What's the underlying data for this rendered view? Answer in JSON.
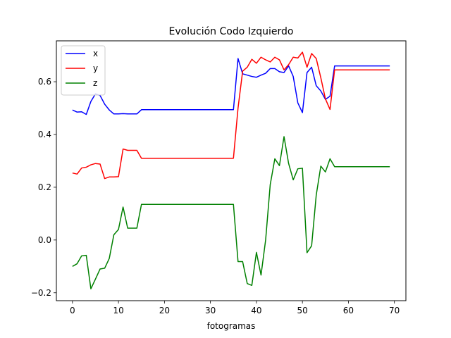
{
  "chart_data": {
    "type": "line",
    "title": "Evolución Codo Izquierdo",
    "xlabel": "fotogramas",
    "ylabel": "",
    "xlim": [
      -3.5,
      72.5
    ],
    "ylim": [
      -0.23,
      0.755
    ],
    "xticks": [
      0,
      10,
      20,
      30,
      40,
      50,
      60,
      70
    ],
    "xtick_labels": [
      "0",
      "10",
      "20",
      "30",
      "40",
      "50",
      "60",
      "70"
    ],
    "yticks": [
      -0.2,
      0.0,
      0.2,
      0.4,
      0.6
    ],
    "ytick_labels": [
      "−0.2",
      "0.0",
      "0.2",
      "0.4",
      "0.6"
    ],
    "grid": false,
    "legend_position": "top-left",
    "x": [
      0,
      1,
      2,
      3,
      4,
      5,
      6,
      7,
      8,
      9,
      10,
      11,
      12,
      13,
      14,
      15,
      16,
      17,
      18,
      19,
      20,
      21,
      22,
      23,
      24,
      25,
      26,
      27,
      28,
      29,
      30,
      31,
      32,
      33,
      34,
      35,
      36,
      37,
      38,
      39,
      40,
      41,
      42,
      43,
      44,
      45,
      46,
      47,
      48,
      49,
      50,
      51,
      52,
      53,
      54,
      55,
      56,
      57,
      58,
      59,
      60,
      61,
      62,
      63,
      64,
      65,
      66,
      67,
      68,
      69
    ],
    "series": [
      {
        "name": "x",
        "color": "#0000ff",
        "values": [
          0.493,
          0.485,
          0.486,
          0.476,
          0.525,
          0.554,
          0.548,
          0.515,
          0.493,
          0.478,
          0.478,
          0.479,
          0.478,
          0.478,
          0.478,
          0.494,
          0.494,
          0.494,
          0.494,
          0.494,
          0.494,
          0.494,
          0.494,
          0.494,
          0.494,
          0.494,
          0.494,
          0.494,
          0.494,
          0.494,
          0.494,
          0.494,
          0.494,
          0.494,
          0.494,
          0.494,
          0.688,
          0.63,
          0.625,
          0.62,
          0.617,
          0.625,
          0.632,
          0.65,
          0.65,
          0.638,
          0.635,
          0.66,
          0.62,
          0.52,
          0.483,
          0.635,
          0.655,
          0.585,
          0.565,
          0.533,
          0.545,
          0.66,
          0.66,
          0.66,
          0.66,
          0.66,
          0.66,
          0.66,
          0.66,
          0.66,
          0.66,
          0.66,
          0.66,
          0.66
        ]
      },
      {
        "name": "y",
        "color": "#ff0000",
        "values": [
          0.254,
          0.25,
          0.273,
          0.276,
          0.285,
          0.29,
          0.288,
          0.233,
          0.239,
          0.239,
          0.24,
          0.345,
          0.34,
          0.34,
          0.34,
          0.31,
          0.31,
          0.31,
          0.31,
          0.31,
          0.31,
          0.31,
          0.31,
          0.31,
          0.31,
          0.31,
          0.31,
          0.31,
          0.31,
          0.31,
          0.31,
          0.31,
          0.31,
          0.31,
          0.31,
          0.31,
          0.5,
          0.64,
          0.655,
          0.685,
          0.67,
          0.693,
          0.683,
          0.675,
          0.693,
          0.683,
          0.645,
          0.665,
          0.693,
          0.69,
          0.712,
          0.655,
          0.707,
          0.688,
          0.615,
          0.535,
          0.495,
          0.645,
          0.645,
          0.645,
          0.645,
          0.645,
          0.645,
          0.645,
          0.645,
          0.645,
          0.645,
          0.645,
          0.645,
          0.645
        ]
      },
      {
        "name": "z",
        "color": "#008000",
        "values": [
          -0.1,
          -0.09,
          -0.06,
          -0.058,
          -0.185,
          -0.148,
          -0.11,
          -0.107,
          -0.07,
          0.02,
          0.04,
          0.125,
          0.045,
          0.045,
          0.045,
          0.135,
          0.135,
          0.135,
          0.135,
          0.135,
          0.135,
          0.135,
          0.135,
          0.135,
          0.135,
          0.135,
          0.135,
          0.135,
          0.135,
          0.135,
          0.135,
          0.135,
          0.135,
          0.135,
          0.135,
          0.135,
          -0.082,
          -0.082,
          -0.165,
          -0.172,
          -0.047,
          -0.133,
          0.0,
          0.21,
          0.308,
          0.282,
          0.392,
          0.29,
          0.228,
          0.27,
          0.272,
          -0.048,
          -0.022,
          0.17,
          0.28,
          0.258,
          0.308,
          0.278,
          0.278,
          0.278,
          0.278,
          0.278,
          0.278,
          0.278,
          0.278,
          0.278,
          0.278,
          0.278,
          0.278,
          0.278
        ]
      }
    ]
  }
}
